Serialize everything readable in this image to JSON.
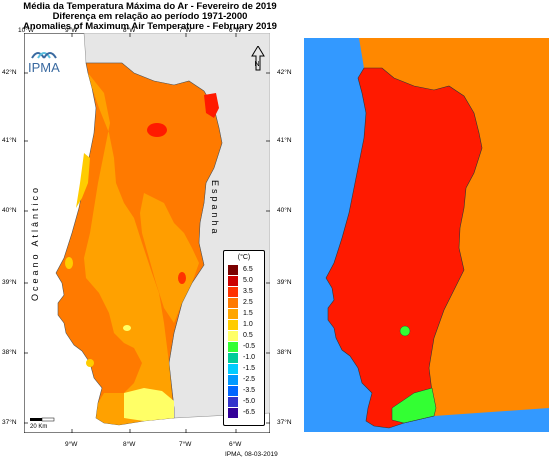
{
  "titles": {
    "line1": "Média da Temperatura Máxima do Ar - Fevereiro de 2019",
    "line2": "Diferença em relação ao período 1971-2000",
    "line3": "Anomalies of Maximum Air Temperature - February 2019"
  },
  "logo": {
    "text": "IPMA",
    "icon": "ipma-wave-logo"
  },
  "north_arrow": {
    "icon": "north-arrow-icon",
    "label": "N"
  },
  "lon_ticks_top": [
    "10°W",
    "9°W",
    "8°W",
    "7°W",
    "6°W"
  ],
  "lon_ticks_bottom": [
    "9°W",
    "8°W",
    "7°W",
    "6°W"
  ],
  "lat_ticks_left": [
    "42°N",
    "41°N",
    "40°N",
    "39°N",
    "38°N",
    "37°N"
  ],
  "lat_ticks_right": [
    "42°N",
    "41°N",
    "40°N",
    "39°N",
    "38°N",
    "37°N"
  ],
  "ocean_label": "Oceano Atlântico",
  "spain_label": "Espanha",
  "legend": {
    "title": "(°C)",
    "items": [
      {
        "label": "6.5",
        "color": "#7a0000"
      },
      {
        "label": "5.0",
        "color": "#cc0000"
      },
      {
        "label": "3.5",
        "color": "#ff3300"
      },
      {
        "label": "2.5",
        "color": "#ff7a00"
      },
      {
        "label": "1.5",
        "color": "#ffa500"
      },
      {
        "label": "1.0",
        "color": "#ffcc00"
      },
      {
        "label": "0.5",
        "color": "#ffff66"
      },
      {
        "label": "-0.5",
        "color": "#33ff33"
      },
      {
        "label": "-1.0",
        "color": "#00cc99"
      },
      {
        "label": "-1.5",
        "color": "#00ccff"
      },
      {
        "label": "-2.5",
        "color": "#0099ff"
      },
      {
        "label": "-3.5",
        "color": "#0066ff"
      },
      {
        "label": "-5.0",
        "color": "#3333cc"
      },
      {
        "label": "-6.5",
        "color": "#330099"
      }
    ]
  },
  "scale_bar": {
    "label_start": "20",
    "label_end": "Km"
  },
  "credit": "IPMA, 08-03-2019",
  "colors": {
    "ocean_right": "#3399ff",
    "spain_right": "#ff8800",
    "portugal_right": "#ff1a00",
    "algarve_right": "#33ff33",
    "spain_left": "#e6e6e6"
  }
}
